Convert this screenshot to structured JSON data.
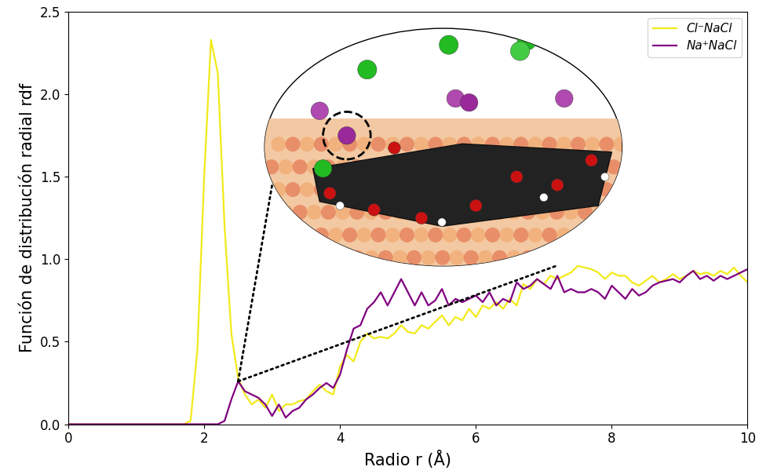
{
  "chart_data": {
    "type": "line",
    "x_label": "Radio r (Å)",
    "y_label": "Función de distribución radial rdf",
    "x": [
      0.0,
      0.1,
      0.2,
      0.3,
      0.4,
      0.5,
      0.6,
      0.7,
      0.8,
      0.9,
      1.0,
      1.1,
      1.2,
      1.3,
      1.4,
      1.5,
      1.6,
      1.7,
      1.8,
      1.9,
      2.0,
      2.1,
      2.2,
      2.3,
      2.4,
      2.5,
      2.6,
      2.7,
      2.8,
      2.9,
      3.0,
      3.1,
      3.2,
      3.3,
      3.4,
      3.5,
      3.6,
      3.7,
      3.8,
      3.9,
      4.0,
      4.1,
      4.2,
      4.3,
      4.4,
      4.5,
      4.6,
      4.7,
      4.8,
      4.9,
      5.0,
      5.1,
      5.2,
      5.3,
      5.4,
      5.5,
      5.6,
      5.7,
      5.8,
      5.9,
      6.0,
      6.1,
      6.2,
      6.3,
      6.4,
      6.5,
      6.6,
      6.7,
      6.8,
      6.9,
      7.0,
      7.1,
      7.2,
      7.3,
      7.4,
      7.5,
      7.6,
      7.7,
      7.8,
      7.9,
      8.0,
      8.1,
      8.2,
      8.3,
      8.4,
      8.5,
      8.6,
      8.7,
      8.8,
      8.9,
      9.0,
      9.1,
      9.2,
      9.3,
      9.4,
      9.5,
      9.6,
      9.7,
      9.8,
      9.9,
      10.0
    ],
    "series": [
      {
        "name": "Cl⁻NaCl",
        "color": "#f2ea1a",
        "values": [
          0,
          0,
          0,
          0,
          0,
          0,
          0,
          0,
          0,
          0,
          0,
          0,
          0,
          0,
          0,
          0,
          0,
          0,
          0.02,
          0.45,
          1.5,
          2.33,
          2.13,
          1.2,
          0.55,
          0.28,
          0.18,
          0.12,
          0.15,
          0.1,
          0.18,
          0.08,
          0.12,
          0.12,
          0.14,
          0.15,
          0.2,
          0.24,
          0.2,
          0.18,
          0.35,
          0.42,
          0.38,
          0.5,
          0.55,
          0.52,
          0.53,
          0.52,
          0.55,
          0.6,
          0.56,
          0.55,
          0.6,
          0.58,
          0.62,
          0.66,
          0.6,
          0.65,
          0.63,
          0.7,
          0.65,
          0.72,
          0.7,
          0.74,
          0.7,
          0.76,
          0.72,
          0.85,
          0.82,
          0.88,
          0.85,
          0.9,
          0.88,
          0.9,
          0.92,
          0.96,
          0.95,
          0.94,
          0.92,
          0.88,
          0.92,
          0.9,
          0.9,
          0.86,
          0.84,
          0.87,
          0.9,
          0.86,
          0.88,
          0.91,
          0.88,
          0.9,
          0.93,
          0.91,
          0.92,
          0.9,
          0.93,
          0.91,
          0.95,
          0.9,
          0.86
        ]
      },
      {
        "name": "Na⁺NaCl",
        "color": "#800080",
        "values": [
          0,
          0,
          0,
          0,
          0,
          0,
          0,
          0,
          0,
          0,
          0,
          0,
          0,
          0,
          0,
          0,
          0,
          0,
          0,
          0,
          0,
          0,
          0,
          0.02,
          0.15,
          0.26,
          0.2,
          0.18,
          0.16,
          0.12,
          0.05,
          0.12,
          0.04,
          0.08,
          0.1,
          0.15,
          0.18,
          0.22,
          0.25,
          0.22,
          0.3,
          0.45,
          0.58,
          0.6,
          0.7,
          0.74,
          0.8,
          0.72,
          0.8,
          0.88,
          0.8,
          0.72,
          0.8,
          0.72,
          0.75,
          0.82,
          0.72,
          0.76,
          0.74,
          0.76,
          0.78,
          0.74,
          0.8,
          0.72,
          0.76,
          0.74,
          0.86,
          0.82,
          0.84,
          0.88,
          0.85,
          0.82,
          0.9,
          0.8,
          0.82,
          0.8,
          0.8,
          0.82,
          0.8,
          0.76,
          0.84,
          0.8,
          0.76,
          0.82,
          0.78,
          0.8,
          0.84,
          0.86,
          0.87,
          0.88,
          0.86,
          0.9,
          0.93,
          0.88,
          0.9,
          0.87,
          0.9,
          0.88,
          0.9,
          0.92,
          0.94
        ]
      }
    ],
    "xlim": [
      0,
      10
    ],
    "ylim": [
      0,
      2.5
    ],
    "xticks": [
      0,
      2,
      4,
      6,
      8,
      10
    ],
    "yticks": [
      {
        "value": 0,
        "label": "0.0"
      },
      {
        "value": 0.5,
        "label": "0.5"
      },
      {
        "value": 1,
        "label": "1.0"
      },
      {
        "value": 1.5,
        "label": "1.5"
      },
      {
        "value": 2,
        "label": "2.0"
      },
      {
        "value": 2.5,
        "label": "2.5"
      }
    ],
    "legend": "upper right"
  }
}
